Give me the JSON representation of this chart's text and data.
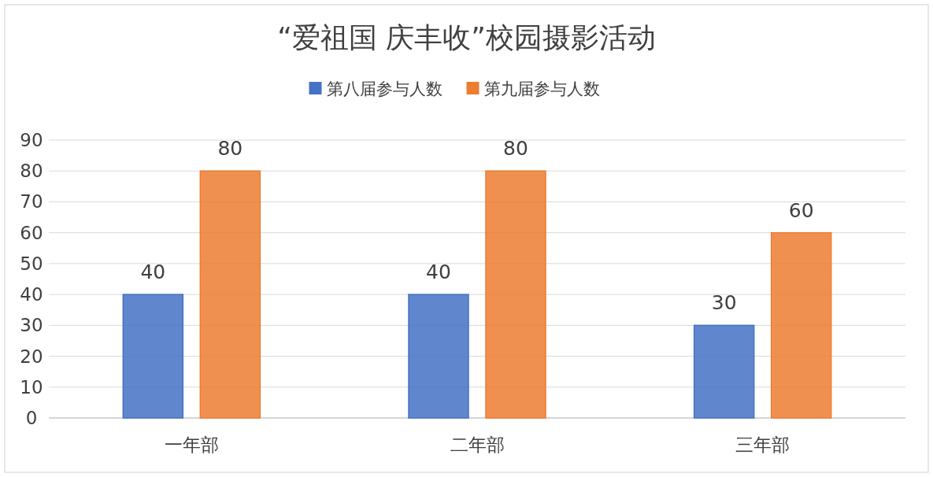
{
  "chart_data": {
    "type": "bar",
    "title": "“爱祖国  庆丰收”校园摄影活动",
    "categories": [
      "一年部",
      "二年部",
      "三年部"
    ],
    "series": [
      {
        "name": "第八届参与人数",
        "color": "#4472c4",
        "values": [
          40,
          40,
          30
        ]
      },
      {
        "name": "第九届参与人数",
        "color": "#ed7d31",
        "values": [
          80,
          80,
          60
        ]
      }
    ],
    "ylim": [
      0,
      90
    ],
    "yticks": [
      0,
      10,
      20,
      30,
      40,
      50,
      60,
      70,
      80,
      90
    ],
    "grid": "y",
    "legend": "top",
    "data_labels": true
  }
}
